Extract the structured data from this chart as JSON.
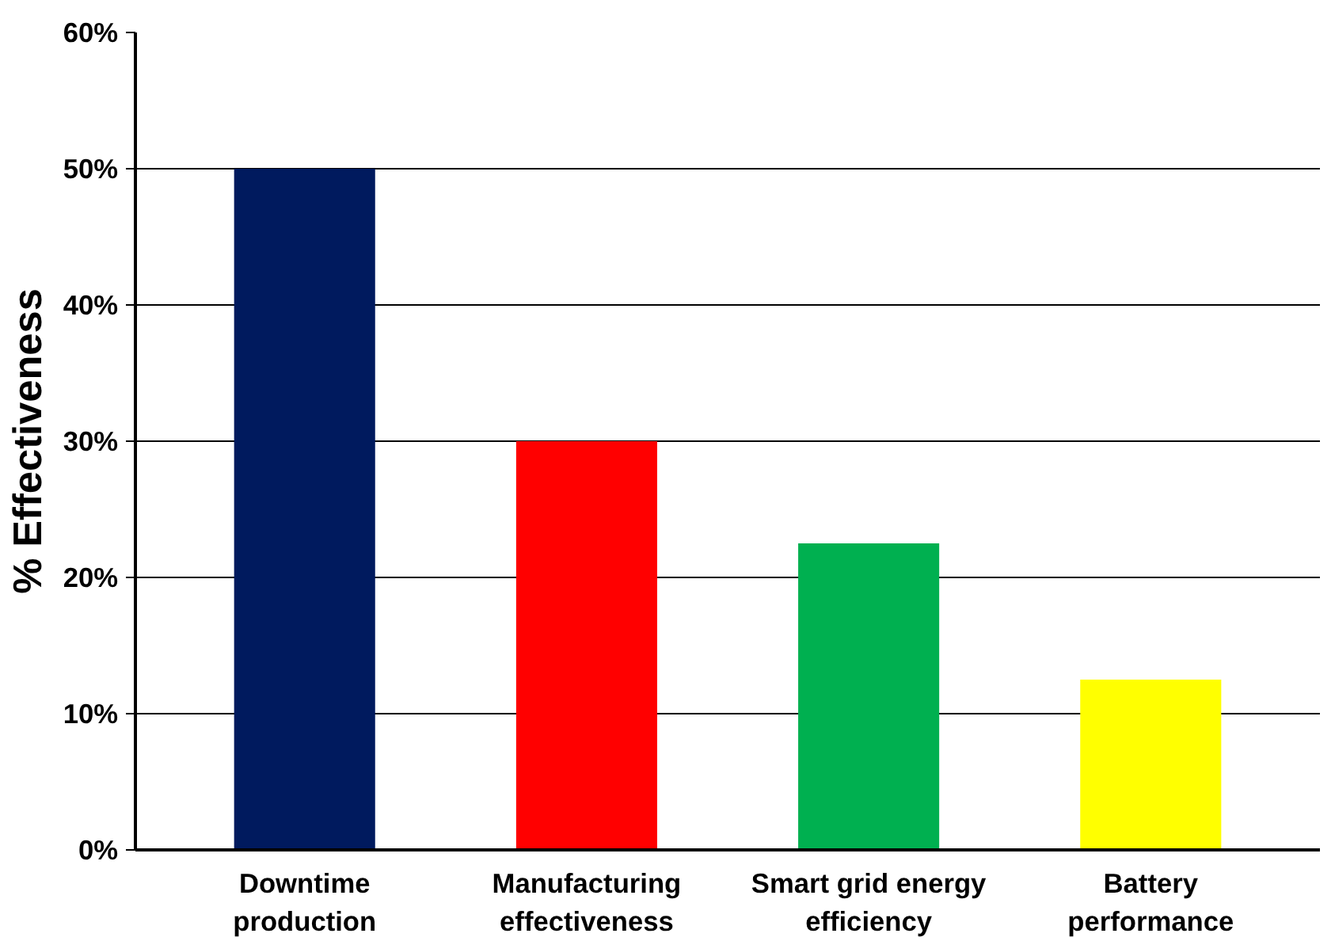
{
  "chart_data": {
    "type": "bar",
    "ylabel": "% Effectiveness",
    "categories": [
      "Downtime\nproduction",
      "Manufacturing\neffectiveness",
      "Smart grid energy\nefficiency",
      "Battery\nperformance"
    ],
    "values": [
      50,
      30,
      22.5,
      12.5
    ],
    "colors": [
      "#001a5e",
      "#ff0000",
      "#00b050",
      "#ffff00"
    ],
    "ylim": [
      0,
      60
    ],
    "yticks": [
      {
        "value": 0,
        "label": "0%"
      },
      {
        "value": 10,
        "label": "10%"
      },
      {
        "value": 20,
        "label": "20%"
      },
      {
        "value": 30,
        "label": "30%"
      },
      {
        "value": 40,
        "label": "40%"
      },
      {
        "value": 50,
        "label": "50%"
      },
      {
        "value": 60,
        "label": "60%"
      }
    ],
    "grid": "y"
  }
}
